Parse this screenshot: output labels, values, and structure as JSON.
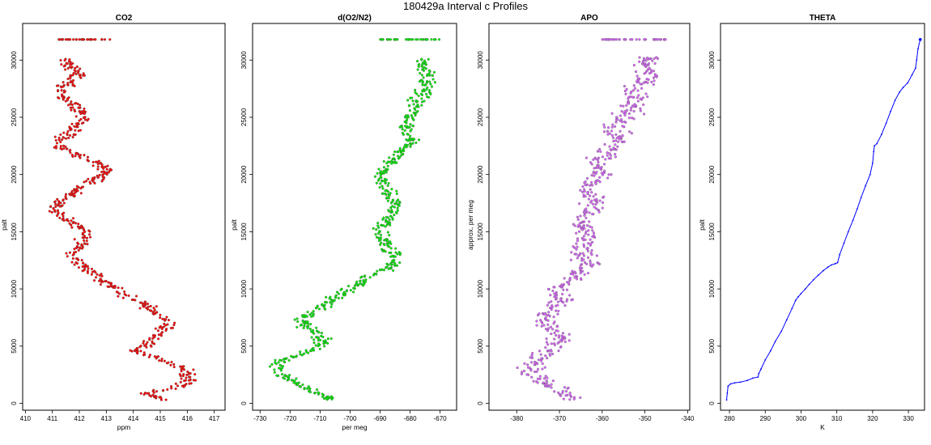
{
  "title": "180429a   Interval c Profiles",
  "colors": {
    "co2": "#ff0000",
    "o2n2": "#00ee00",
    "apo": "#dd66ff",
    "theta": "#0000ff",
    "outline": "#555555"
  },
  "chart_data": [
    {
      "type": "scatter",
      "title": "CO2",
      "xlabel": "ppm",
      "ylabel": "palt",
      "xlim": [
        409.9,
        417.4
      ],
      "ylim": [
        -600,
        33200
      ],
      "xticks": [
        "410",
        "411",
        "412",
        "413",
        "414",
        "415",
        "416",
        "417"
      ],
      "yticks": [
        "0",
        "5000",
        "10000",
        "15000",
        "20000",
        "25000",
        "30000"
      ],
      "profile": [
        [
          415.2,
          300
        ],
        [
          414.4,
          800
        ],
        [
          415.8,
          1500
        ],
        [
          416.1,
          2200
        ],
        [
          415.9,
          3000
        ],
        [
          415.0,
          3800
        ],
        [
          414.1,
          4600
        ],
        [
          414.6,
          5200
        ],
        [
          414.9,
          6000
        ],
        [
          415.3,
          7000
        ],
        [
          414.8,
          8000
        ],
        [
          414.5,
          8700
        ],
        [
          413.6,
          9600
        ],
        [
          413.1,
          10400
        ],
        [
          412.6,
          11200
        ],
        [
          412.1,
          12000
        ],
        [
          411.7,
          12900
        ],
        [
          412.0,
          13800
        ],
        [
          412.3,
          14600
        ],
        [
          412.0,
          15400
        ],
        [
          411.5,
          16100
        ],
        [
          411.0,
          16900
        ],
        [
          411.2,
          17600
        ],
        [
          411.7,
          18300
        ],
        [
          412.1,
          19000
        ],
        [
          412.7,
          19700
        ],
        [
          413.1,
          20300
        ],
        [
          412.6,
          21000
        ],
        [
          412.0,
          21700
        ],
        [
          411.3,
          22400
        ],
        [
          411.5,
          23300
        ],
        [
          411.8,
          24100
        ],
        [
          412.1,
          24900
        ],
        [
          412.0,
          25700
        ],
        [
          411.6,
          26500
        ],
        [
          411.3,
          27300
        ],
        [
          411.6,
          28000
        ],
        [
          412.0,
          28700
        ],
        [
          411.7,
          29400
        ],
        [
          411.5,
          30100
        ]
      ],
      "jitter": 0.45,
      "top_row": {
        "y": 31800,
        "x": [
          411.2,
          413.2
        ]
      }
    },
    {
      "type": "scatter",
      "title": "d(O2/N2)",
      "xlabel": "per meg",
      "ylabel": "palt",
      "xlim": [
        -732.5,
        -664.5
      ],
      "ylim": [
        -600,
        33200
      ],
      "xticks": [
        "-730",
        "-720",
        "-710",
        "-700",
        "-690",
        "-680",
        "-670"
      ],
      "yticks": [
        "0",
        "5000",
        "10000",
        "15000",
        "20000",
        "25000",
        "30000"
      ],
      "profile": [
        [
          -706,
          300
        ],
        [
          -710,
          800
        ],
        [
          -716,
          1500
        ],
        [
          -721,
          2200
        ],
        [
          -725,
          3000
        ],
        [
          -723,
          3800
        ],
        [
          -712,
          4600
        ],
        [
          -709,
          5300
        ],
        [
          -710,
          6000
        ],
        [
          -715,
          6800
        ],
        [
          -716,
          7500
        ],
        [
          -710,
          8300
        ],
        [
          -707,
          9000
        ],
        [
          -702,
          9700
        ],
        [
          -697,
          10400
        ],
        [
          -693,
          11200
        ],
        [
          -686,
          12000
        ],
        [
          -685,
          12700
        ],
        [
          -687,
          13400
        ],
        [
          -688,
          14200
        ],
        [
          -690,
          15000
        ],
        [
          -688,
          15800
        ],
        [
          -686,
          16600
        ],
        [
          -685,
          17400
        ],
        [
          -687,
          18200
        ],
        [
          -688,
          19000
        ],
        [
          -690,
          19800
        ],
        [
          -688,
          20600
        ],
        [
          -685,
          21400
        ],
        [
          -682,
          22200
        ],
        [
          -680,
          23000
        ],
        [
          -681,
          23800
        ],
        [
          -681,
          24600
        ],
        [
          -679,
          25400
        ],
        [
          -678,
          26200
        ],
        [
          -676,
          27000
        ],
        [
          -674,
          27800
        ],
        [
          -674,
          28600
        ],
        [
          -676,
          29400
        ],
        [
          -675,
          30100
        ]
      ],
      "jitter": 4.0,
      "top_row": {
        "y": 31800,
        "x": [
          -690,
          -670
        ]
      }
    },
    {
      "type": "scatter",
      "title": "APO",
      "xlabel": "",
      "ylabel": "approx. per meg",
      "xlim": [
        -386.5,
        -339.5
      ],
      "ylim": [
        -600,
        33200
      ],
      "xticks": [
        "-380",
        "-370",
        "-360",
        "-350",
        "-340"
      ],
      "yticks": [
        "0",
        "5000",
        "10000",
        "15000",
        "20000",
        "25000",
        "30000"
      ],
      "profile": [
        [
          -369,
          300
        ],
        [
          -368,
          1000
        ],
        [
          -373,
          1800
        ],
        [
          -377,
          2600
        ],
        [
          -376,
          3400
        ],
        [
          -374,
          4200
        ],
        [
          -371,
          5000
        ],
        [
          -370,
          5800
        ],
        [
          -372,
          6600
        ],
        [
          -374,
          7400
        ],
        [
          -371,
          8200
        ],
        [
          -369,
          9000
        ],
        [
          -371,
          9800
        ],
        [
          -368,
          10600
        ],
        [
          -366,
          11400
        ],
        [
          -363,
          12200
        ],
        [
          -365,
          13000
        ],
        [
          -364,
          13800
        ],
        [
          -363,
          14600
        ],
        [
          -365,
          15400
        ],
        [
          -364,
          16200
        ],
        [
          -362,
          17000
        ],
        [
          -361,
          17800
        ],
        [
          -363,
          18600
        ],
        [
          -362,
          19400
        ],
        [
          -360,
          20200
        ],
        [
          -361,
          21000
        ],
        [
          -359,
          21800
        ],
        [
          -357,
          22600
        ],
        [
          -356,
          23400
        ],
        [
          -357,
          24200
        ],
        [
          -355,
          25000
        ],
        [
          -353,
          25800
        ],
        [
          -353,
          26600
        ],
        [
          -352,
          27400
        ],
        [
          -350,
          28200
        ],
        [
          -350,
          29000
        ],
        [
          -350,
          29800
        ],
        [
          -349,
          30200
        ]
      ],
      "jitter": 4.5,
      "top_row": {
        "y": 31800,
        "x": [
          -360,
          -345
        ]
      }
    },
    {
      "type": "line",
      "title": "THETA",
      "xlabel": "K",
      "ylabel": "palt",
      "xlim": [
        277.5,
        334.5
      ],
      "ylim": [
        -600,
        33200
      ],
      "xticks": [
        "280",
        "290",
        "300",
        "310",
        "320",
        "330"
      ],
      "yticks": [
        "0",
        "5000",
        "10000",
        "15000",
        "20000",
        "25000",
        "30000"
      ],
      "series": [
        {
          "x": [
            279.2,
            279.4,
            279.6,
            280.3,
            281.5,
            283.0,
            285.0,
            286.5,
            288.0,
            288.2,
            288.8,
            290.0,
            291.5,
            292.8,
            294.5,
            296.0,
            297.5,
            298.5,
            299.2,
            300.0,
            301.2,
            302.3,
            303.5,
            304.8,
            306.2,
            307.5,
            308.5,
            309.5,
            310.2,
            310.8,
            312.0,
            313.2,
            314.5,
            315.7,
            316.8,
            318.0,
            319.3,
            320.0,
            320.3,
            320.5,
            321.2,
            322.5,
            323.8,
            325.0,
            326.3,
            327.5,
            328.5,
            329.8,
            331.0,
            332.0,
            332.3,
            332.7,
            333.3
          ],
          "y": [
            300,
            900,
            1500,
            1700,
            1800,
            1850,
            2000,
            2200,
            2300,
            2600,
            3000,
            3800,
            4600,
            5400,
            6300,
            7300,
            8300,
            9000,
            9300,
            9600,
            10000,
            10400,
            10800,
            11200,
            11600,
            11900,
            12100,
            12200,
            12300,
            13000,
            14000,
            15000,
            16000,
            17000,
            18000,
            19000,
            20000,
            21000,
            22000,
            22500,
            22700,
            23500,
            24500,
            25500,
            26500,
            27200,
            27600,
            28000,
            28700,
            29300,
            30000,
            31000,
            31800
          ]
        }
      ]
    }
  ]
}
